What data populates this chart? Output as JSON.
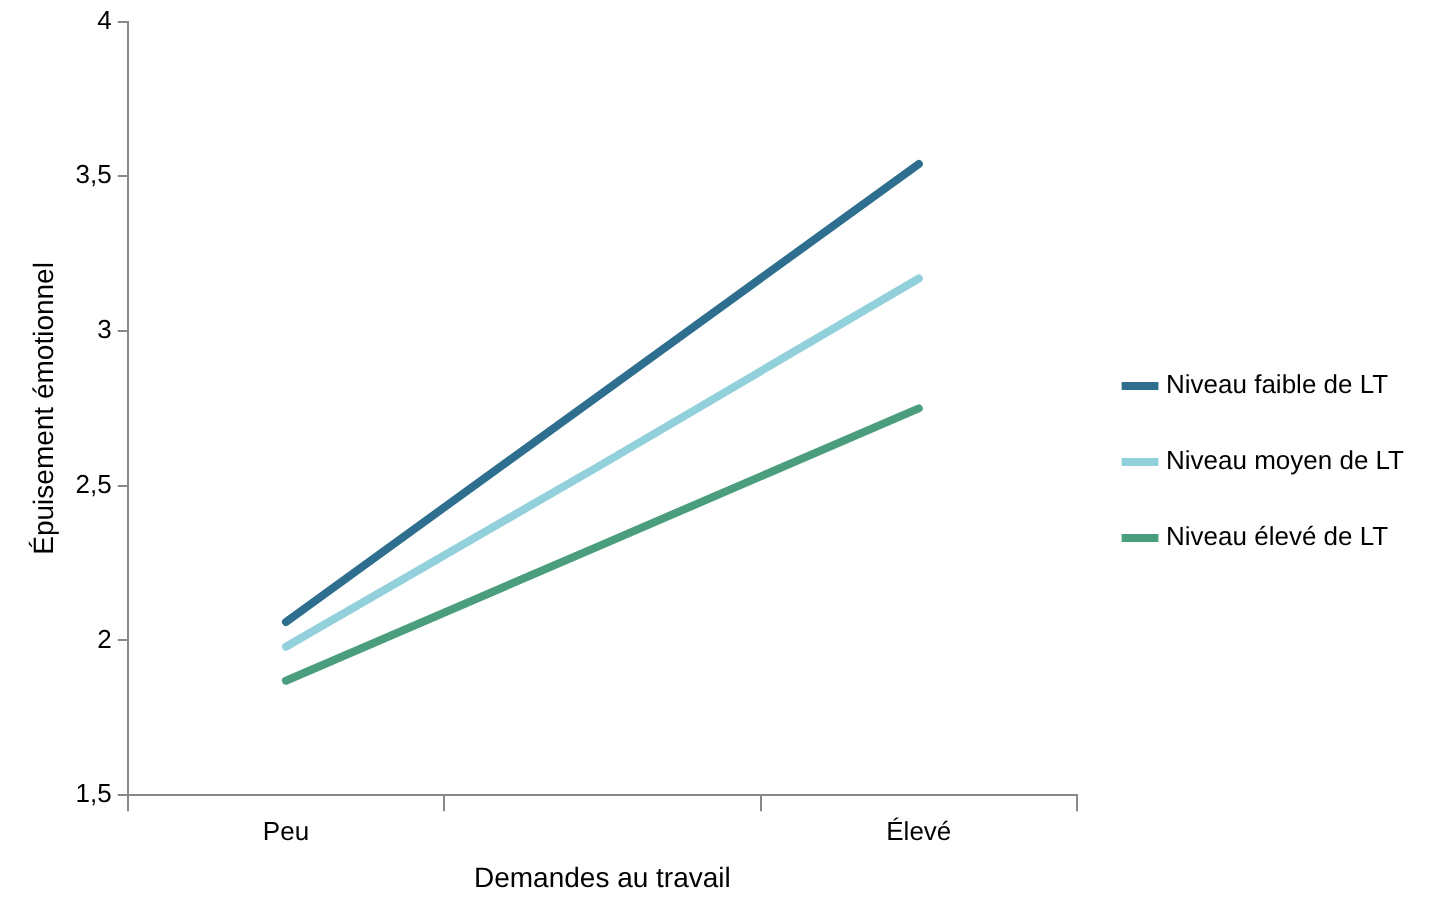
{
  "chart_data": {
    "type": "line",
    "xlabel": "Demandes au travail",
    "ylabel": "Épuisement émotionnel",
    "categories": [
      "Peu",
      null,
      "Élevé"
    ],
    "series": [
      {
        "name": "Niveau faible de LT",
        "color": "#2e6e8e",
        "values": [
          2.06,
          2.8,
          3.54
        ]
      },
      {
        "name": "Niveau moyen de LT",
        "color": "#92d0dc",
        "values": [
          1.98,
          2.57,
          3.17
        ]
      },
      {
        "name": "Niveau élevé de LT",
        "color": "#4a9e7e",
        "values": [
          1.87,
          2.31,
          2.75
        ]
      }
    ],
    "ylim": [
      1.5,
      4
    ],
    "yticks": [
      {
        "value": 1.5,
        "label": "1,5"
      },
      2,
      {
        "value": 2.5,
        "label": "2,5"
      },
      3,
      {
        "value": 3.5,
        "label": "3,5"
      },
      4
    ],
    "grid": false,
    "legend": "right",
    "marker": "none",
    "line_style": "solid"
  }
}
